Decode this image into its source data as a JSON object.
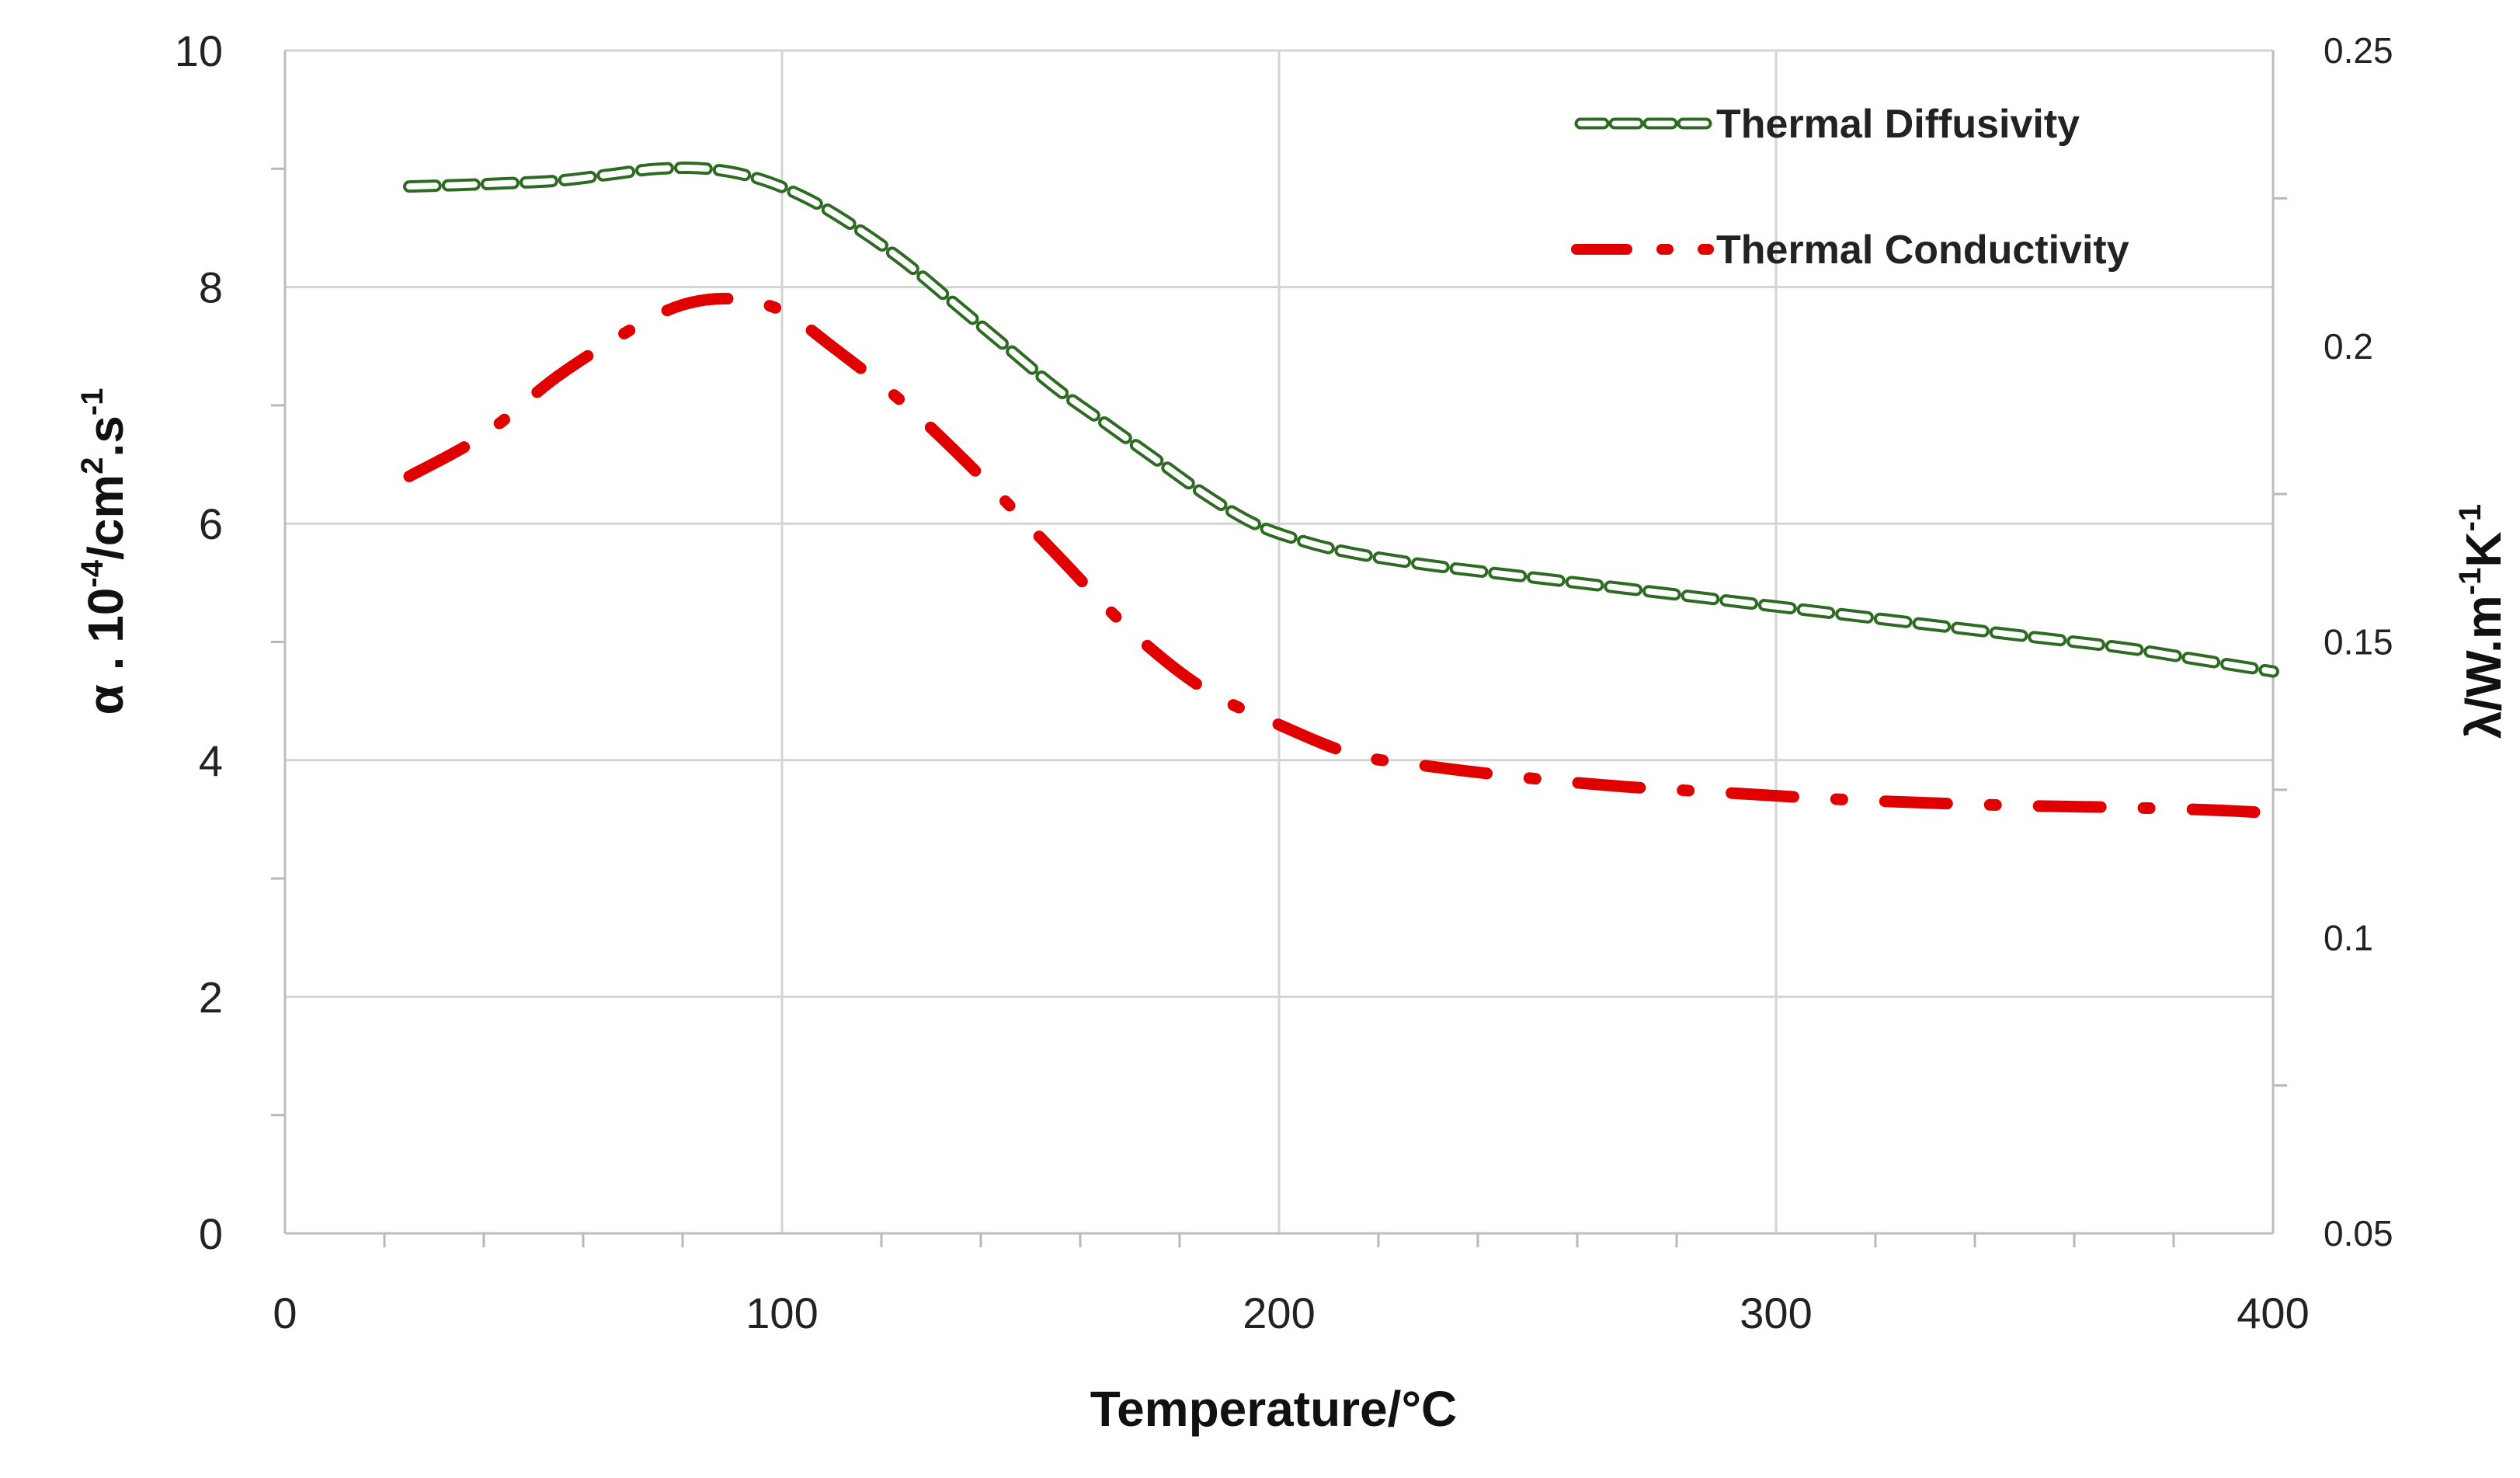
{
  "chart_data": {
    "type": "line",
    "title": "",
    "xlabel": "Temperature/°C",
    "ylabel_left": {
      "main": "α . 10",
      "exp1": "-4",
      "mid": "/cm",
      "exp2": "2",
      "tail": ".s",
      "exp3": "-1"
    },
    "ylabel_right": {
      "main": "λ/W.m",
      "exp1": "-1",
      "mid": "K",
      "exp2": "-1"
    },
    "xlim": [
      0,
      400
    ],
    "ylim_left": [
      0,
      10
    ],
    "ylim_right": [
      0.05,
      0.25
    ],
    "x_ticks": [
      "0",
      "100",
      "200",
      "300",
      "400"
    ],
    "x_tick_values": [
      0,
      100,
      200,
      300,
      400
    ],
    "y_left_ticks": [
      "0",
      "2",
      "4",
      "6",
      "8",
      "10"
    ],
    "y_left_tick_values": [
      0,
      2,
      4,
      6,
      8,
      10
    ],
    "y_right_ticks": [
      "0.05",
      "0.1",
      "0.15",
      "0.2",
      "0.25"
    ],
    "y_right_tick_values": [
      0.05,
      0.1,
      0.15,
      0.2,
      0.25
    ],
    "grid": true,
    "legend_position": "top-right",
    "series": [
      {
        "name": "Thermal Diffusivity",
        "axis": "left",
        "style": "hollow-dash",
        "color": "#2e6b22",
        "x": [
          25,
          40,
          55,
          65,
          75,
          85,
          95,
          105,
          115,
          125,
          135,
          145,
          155,
          165,
          175,
          185,
          195,
          205,
          215,
          230,
          250,
          270,
          290,
          310,
          330,
          350,
          370,
          385,
          400
        ],
        "y": [
          8.85,
          8.87,
          8.9,
          8.95,
          9.0,
          9.0,
          8.92,
          8.75,
          8.5,
          8.2,
          7.85,
          7.5,
          7.15,
          6.85,
          6.55,
          6.25,
          6.0,
          5.85,
          5.75,
          5.65,
          5.55,
          5.45,
          5.35,
          5.25,
          5.15,
          5.05,
          4.95,
          4.85,
          4.75
        ]
      },
      {
        "name": "Thermal Conductivity",
        "axis": "right",
        "style": "dash-dot",
        "color": "#e00000",
        "x": [
          25,
          40,
          55,
          70,
          80,
          90,
          100,
          110,
          125,
          140,
          155,
          170,
          185,
          200,
          215,
          230,
          250,
          270,
          290,
          310,
          330,
          350,
          370,
          390,
          400
        ],
        "y": [
          0.178,
          0.185,
          0.195,
          0.203,
          0.207,
          0.208,
          0.206,
          0.2,
          0.19,
          0.178,
          0.165,
          0.152,
          0.142,
          0.136,
          0.131,
          0.129,
          0.127,
          0.1255,
          0.1245,
          0.1235,
          0.1228,
          0.1223,
          0.122,
          0.1215,
          0.121
        ]
      }
    ]
  }
}
